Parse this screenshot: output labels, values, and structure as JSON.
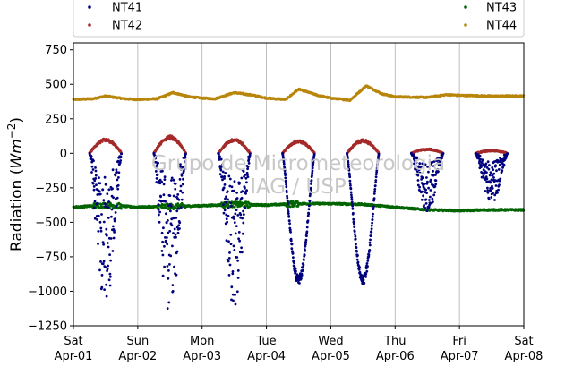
{
  "chart_data": {
    "type": "scatter",
    "title": "",
    "xlabel": "",
    "ylabel_main": "Radiation (",
    "ylabel_unit": "Wm",
    "ylabel_exp": "−2",
    "ylabel_close": ")",
    "ylim": [
      -1250,
      800
    ],
    "yticks": [
      -1250,
      -1000,
      -750,
      -500,
      -250,
      0,
      250,
      500,
      750
    ],
    "ytick_labels": [
      "−1250",
      "−1000",
      "−750",
      "−500",
      "−250",
      "0",
      "250",
      "500",
      "750"
    ],
    "xlim_days": [
      0,
      7
    ],
    "xticks": [
      {
        "day": "Sat",
        "date": "Apr-01"
      },
      {
        "day": "Sun",
        "date": "Apr-02"
      },
      {
        "day": "Mon",
        "date": "Apr-03"
      },
      {
        "day": "Tue",
        "date": "Apr-04"
      },
      {
        "day": "Wed",
        "date": "Apr-05"
      },
      {
        "day": "Thu",
        "date": "Apr-06"
      },
      {
        "day": "Fri",
        "date": "Apr-07"
      },
      {
        "day": "Sat",
        "date": "Apr-08"
      }
    ],
    "grid_x": true,
    "grid_y": false,
    "legend_position": "top",
    "watermark_line1": "Grupo de Micrometeorologia",
    "watermark_line2": "IAG / USP",
    "series": [
      {
        "name": "NT41",
        "color": "#00007f",
        "note": "daytime shortwave, negative",
        "days": [
          {
            "day": 0,
            "min": -1100
          },
          {
            "day": 1,
            "min": -1220
          },
          {
            "day": 2,
            "min": -1130
          },
          {
            "day": 3,
            "min": -950
          },
          {
            "day": 4,
            "min": -950
          },
          {
            "day": 5,
            "min": -430
          },
          {
            "day": 6,
            "min": -360
          }
        ]
      },
      {
        "name": "NT42",
        "color": "#a52a2a",
        "days": [
          {
            "day": 0,
            "max": 100
          },
          {
            "day": 1,
            "max": 120
          },
          {
            "day": 2,
            "max": 100
          },
          {
            "day": 3,
            "max": 90
          },
          {
            "day": 4,
            "max": 95
          },
          {
            "day": 5,
            "max": 30
          },
          {
            "day": 6,
            "max": 20
          }
        ]
      },
      {
        "name": "NT43",
        "color": "#006400",
        "baseline": [
          [
            0,
            -390
          ],
          [
            0.5,
            -375
          ],
          [
            1,
            -390
          ],
          [
            1.5,
            -385
          ],
          [
            2,
            -380
          ],
          [
            2.5,
            -370
          ],
          [
            3,
            -375
          ],
          [
            3.5,
            -365
          ],
          [
            4,
            -365
          ],
          [
            4.5,
            -370
          ],
          [
            5,
            -390
          ],
          [
            5.5,
            -410
          ],
          [
            6,
            -415
          ],
          [
            6.5,
            -410
          ],
          [
            7,
            -410
          ]
        ]
      },
      {
        "name": "NT44",
        "color": "#b8860b",
        "baseline": [
          [
            0,
            390
          ],
          [
            0.3,
            395
          ],
          [
            0.5,
            415
          ],
          [
            0.8,
            395
          ],
          [
            1,
            390
          ],
          [
            1.3,
            395
          ],
          [
            1.55,
            440
          ],
          [
            1.8,
            410
          ],
          [
            2,
            400
          ],
          [
            2.2,
            395
          ],
          [
            2.5,
            440
          ],
          [
            2.8,
            420
          ],
          [
            3,
            400
          ],
          [
            3.3,
            390
          ],
          [
            3.5,
            465
          ],
          [
            3.8,
            420
          ],
          [
            4,
            400
          ],
          [
            4.3,
            385
          ],
          [
            4.55,
            490
          ],
          [
            4.8,
            430
          ],
          [
            5,
            410
          ],
          [
            5.5,
            405
          ],
          [
            5.8,
            425
          ],
          [
            6,
            420
          ],
          [
            6.5,
            415
          ],
          [
            7,
            415
          ]
        ]
      }
    ]
  }
}
